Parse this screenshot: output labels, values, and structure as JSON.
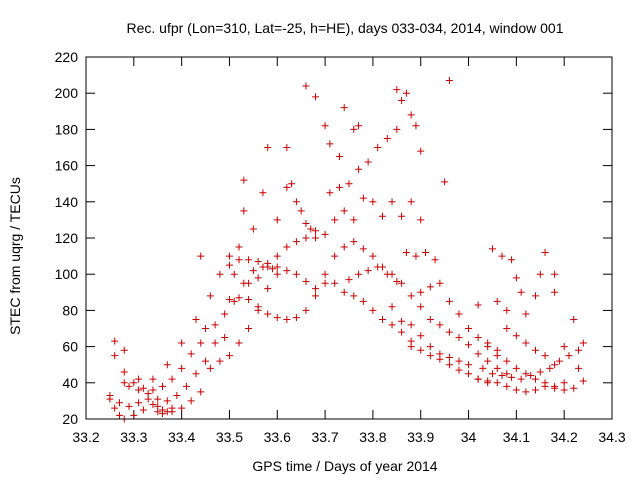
{
  "chart_data": {
    "type": "scatter",
    "title": "Rec. ufpr (Lon=310, Lat=-25, h=HE), days 033-034, 2014, window 001",
    "xlabel": "GPS time / Days of year 2014",
    "ylabel": "STEC from uqrg / TECUs",
    "xlim": [
      33.2,
      34.3
    ],
    "ylim": [
      20,
      220
    ],
    "xticks": [
      "33.2",
      "33.3",
      "33.4",
      "33.5",
      "33.6",
      "33.7",
      "33.8",
      "33.9",
      "34",
      "34.1",
      "34.2",
      "34.3"
    ],
    "yticks": [
      "20",
      "40",
      "60",
      "80",
      "100",
      "120",
      "140",
      "160",
      "180",
      "200",
      "220"
    ],
    "grid": false,
    "marker": "plus",
    "color": "#cc0000",
    "series": [
      {
        "points": [
          [
            33.25,
            31
          ],
          [
            33.26,
            26
          ],
          [
            33.27,
            22
          ],
          [
            33.28,
            20
          ],
          [
            33.3,
            22
          ],
          [
            33.32,
            25
          ],
          [
            33.34,
            28
          ],
          [
            33.36,
            25
          ],
          [
            33.38,
            24
          ],
          [
            33.4,
            26
          ],
          [
            33.42,
            30
          ],
          [
            33.44,
            35
          ],
          [
            33.25,
            33
          ],
          [
            33.27,
            29
          ],
          [
            33.29,
            27
          ],
          [
            33.31,
            29
          ],
          [
            33.33,
            31
          ],
          [
            33.35,
            27
          ],
          [
            33.37,
            30
          ],
          [
            33.39,
            33
          ],
          [
            33.41,
            38
          ],
          [
            33.43,
            45
          ],
          [
            33.45,
            52
          ],
          [
            33.26,
            55
          ],
          [
            33.28,
            46
          ],
          [
            33.3,
            40
          ],
          [
            33.32,
            37
          ],
          [
            33.34,
            36
          ],
          [
            33.36,
            38
          ],
          [
            33.38,
            42
          ],
          [
            33.4,
            48
          ],
          [
            33.42,
            56
          ],
          [
            33.44,
            62
          ],
          [
            33.26,
            63
          ],
          [
            33.28,
            58
          ],
          [
            33.31,
            42
          ],
          [
            33.34,
            42
          ],
          [
            33.37,
            50
          ],
          [
            33.4,
            62
          ],
          [
            33.43,
            75
          ],
          [
            33.46,
            88
          ],
          [
            33.48,
            100
          ],
          [
            33.5,
            110
          ],
          [
            33.35,
            24
          ],
          [
            33.36,
            23
          ],
          [
            33.37,
            24
          ],
          [
            33.38,
            26
          ],
          [
            33.35,
            31
          ],
          [
            33.33,
            34
          ],
          [
            33.31,
            36
          ],
          [
            33.29,
            38
          ],
          [
            33.28,
            40
          ],
          [
            33.46,
            48
          ],
          [
            33.48,
            52
          ],
          [
            33.5,
            55
          ],
          [
            33.52,
            62
          ],
          [
            33.54,
            70
          ],
          [
            33.56,
            80
          ],
          [
            33.58,
            92
          ],
          [
            33.6,
            100
          ],
          [
            33.45,
            70
          ],
          [
            33.47,
            72
          ],
          [
            33.49,
            78
          ],
          [
            33.51,
            85
          ],
          [
            33.53,
            95
          ],
          [
            33.55,
            102
          ],
          [
            33.57,
            104
          ],
          [
            33.59,
            103
          ],
          [
            33.44,
            110
          ],
          [
            33.47,
            62
          ],
          [
            33.49,
            65
          ],
          [
            33.51,
            100
          ],
          [
            33.52,
            115
          ],
          [
            33.53,
            135
          ],
          [
            33.55,
            125
          ],
          [
            33.57,
            145
          ],
          [
            33.58,
            170
          ],
          [
            33.5,
            105
          ],
          [
            33.52,
            108
          ],
          [
            33.54,
            108
          ],
          [
            33.56,
            107
          ],
          [
            33.58,
            106
          ],
          [
            33.6,
            104
          ],
          [
            33.62,
            102
          ],
          [
            33.64,
            100
          ],
          [
            33.66,
            96
          ],
          [
            33.68,
            92
          ],
          [
            33.5,
            86
          ],
          [
            33.52,
            87
          ],
          [
            33.54,
            86
          ],
          [
            33.56,
            82
          ],
          [
            33.58,
            78
          ],
          [
            33.6,
            76
          ],
          [
            33.62,
            75
          ],
          [
            33.64,
            76
          ],
          [
            33.66,
            80
          ],
          [
            33.68,
            88
          ],
          [
            33.7,
            95
          ],
          [
            33.54,
            95
          ],
          [
            33.56,
            98
          ],
          [
            33.58,
            104
          ],
          [
            33.6,
            110
          ],
          [
            33.62,
            115
          ],
          [
            33.64,
            118
          ],
          [
            33.66,
            120
          ],
          [
            33.68,
            124
          ],
          [
            33.7,
            122
          ],
          [
            33.6,
            130
          ],
          [
            33.62,
            148
          ],
          [
            33.63,
            150
          ],
          [
            33.64,
            140
          ],
          [
            33.65,
            135
          ],
          [
            33.66,
            128
          ],
          [
            33.67,
            125
          ],
          [
            33.68,
            120
          ],
          [
            33.53,
            152
          ],
          [
            33.62,
            170
          ],
          [
            33.66,
            204
          ],
          [
            33.68,
            198
          ],
          [
            33.7,
            182
          ],
          [
            33.71,
            172
          ],
          [
            33.73,
            165
          ],
          [
            33.74,
            192
          ],
          [
            33.76,
            180
          ],
          [
            33.77,
            182
          ],
          [
            33.7,
            100
          ],
          [
            33.72,
            95
          ],
          [
            33.74,
            90
          ],
          [
            33.76,
            88
          ],
          [
            33.78,
            85
          ],
          [
            33.8,
            80
          ],
          [
            33.82,
            75
          ],
          [
            33.84,
            72
          ],
          [
            33.86,
            68
          ],
          [
            33.88,
            63
          ],
          [
            33.72,
            110
          ],
          [
            33.74,
            115
          ],
          [
            33.76,
            118
          ],
          [
            33.78,
            114
          ],
          [
            33.8,
            110
          ],
          [
            33.82,
            104
          ],
          [
            33.84,
            100
          ],
          [
            33.86,
            95
          ],
          [
            33.88,
            88
          ],
          [
            33.9,
            82
          ],
          [
            33.71,
            145
          ],
          [
            33.73,
            148
          ],
          [
            33.75,
            150
          ],
          [
            33.77,
            158
          ],
          [
            33.79,
            162
          ],
          [
            33.81,
            170
          ],
          [
            33.83,
            175
          ],
          [
            33.85,
            180
          ],
          [
            33.72,
            130
          ],
          [
            33.74,
            135
          ],
          [
            33.76,
            130
          ],
          [
            33.78,
            142
          ],
          [
            33.8,
            140
          ],
          [
            33.82,
            132
          ],
          [
            33.84,
            140
          ],
          [
            33.86,
            132
          ],
          [
            33.75,
            97
          ],
          [
            33.77,
            100
          ],
          [
            33.79,
            102
          ],
          [
            33.81,
            104
          ],
          [
            33.83,
            100
          ],
          [
            33.85,
            96
          ],
          [
            33.87,
            112
          ],
          [
            33.89,
            110
          ],
          [
            33.85,
            202
          ],
          [
            33.86,
            196
          ],
          [
            33.87,
            200
          ],
          [
            33.88,
            188
          ],
          [
            33.89,
            182
          ],
          [
            33.9,
            168
          ],
          [
            33.88,
            140
          ],
          [
            33.9,
            130
          ],
          [
            33.84,
            82
          ],
          [
            33.86,
            74
          ],
          [
            33.88,
            72
          ],
          [
            33.9,
            66
          ],
          [
            33.92,
            60
          ],
          [
            33.94,
            56
          ],
          [
            33.96,
            54
          ],
          [
            33.98,
            52
          ],
          [
            34.0,
            50
          ],
          [
            33.88,
            60
          ],
          [
            33.9,
            58
          ],
          [
            33.92,
            55
          ],
          [
            33.94,
            53
          ],
          [
            33.96,
            50
          ],
          [
            33.98,
            47
          ],
          [
            34.0,
            45
          ],
          [
            34.02,
            42
          ],
          [
            34.04,
            41
          ],
          [
            33.9,
            90
          ],
          [
            33.92,
            93
          ],
          [
            33.94,
            95
          ],
          [
            33.96,
            85
          ],
          [
            33.98,
            78
          ],
          [
            34.0,
            70
          ],
          [
            34.02,
            65
          ],
          [
            34.04,
            62
          ],
          [
            34.06,
            58
          ],
          [
            33.91,
            112
          ],
          [
            33.93,
            108
          ],
          [
            33.95,
            151
          ],
          [
            33.96,
            207
          ],
          [
            34.02,
            83
          ],
          [
            34.05,
            114
          ],
          [
            34.07,
            110
          ],
          [
            34.09,
            108
          ],
          [
            33.92,
            75
          ],
          [
            33.94,
            72
          ],
          [
            33.96,
            68
          ],
          [
            33.98,
            65
          ],
          [
            34.0,
            61
          ],
          [
            34.02,
            56
          ],
          [
            34.04,
            52
          ],
          [
            34.06,
            48
          ],
          [
            34.08,
            45
          ],
          [
            34.02,
            42
          ],
          [
            34.04,
            40
          ],
          [
            34.06,
            40
          ],
          [
            34.08,
            38
          ],
          [
            34.1,
            36
          ],
          [
            34.12,
            35
          ],
          [
            34.14,
            36
          ],
          [
            34.16,
            38
          ],
          [
            34.18,
            37
          ],
          [
            34.2,
            36
          ],
          [
            34.22,
            37
          ],
          [
            34.03,
            48
          ],
          [
            34.05,
            45
          ],
          [
            34.07,
            44
          ],
          [
            34.09,
            43
          ],
          [
            34.11,
            42
          ],
          [
            34.13,
            44
          ],
          [
            34.15,
            46
          ],
          [
            34.17,
            48
          ],
          [
            34.19,
            52
          ],
          [
            34.21,
            55
          ],
          [
            34.23,
            58
          ],
          [
            34.06,
            85
          ],
          [
            34.08,
            80
          ],
          [
            34.1,
            98
          ],
          [
            34.11,
            90
          ],
          [
            34.12,
            78
          ],
          [
            34.14,
            88
          ],
          [
            34.15,
            100
          ],
          [
            34.16,
            112
          ],
          [
            34.18,
            100
          ],
          [
            34.18,
            90
          ],
          [
            34.08,
            70
          ],
          [
            34.1,
            66
          ],
          [
            34.12,
            62
          ],
          [
            34.14,
            58
          ],
          [
            34.16,
            55
          ],
          [
            34.18,
            50
          ],
          [
            34.2,
            60
          ],
          [
            34.22,
            75
          ],
          [
            34.24,
            62
          ],
          [
            34.23,
            48
          ],
          [
            34.24,
            41
          ],
          [
            34.04,
            60
          ],
          [
            34.06,
            55
          ],
          [
            34.08,
            52
          ],
          [
            34.1,
            48
          ],
          [
            34.12,
            45
          ],
          [
            34.14,
            42
          ],
          [
            34.16,
            40
          ],
          [
            34.18,
            38
          ],
          [
            34.2,
            40
          ]
        ]
      }
    ]
  }
}
